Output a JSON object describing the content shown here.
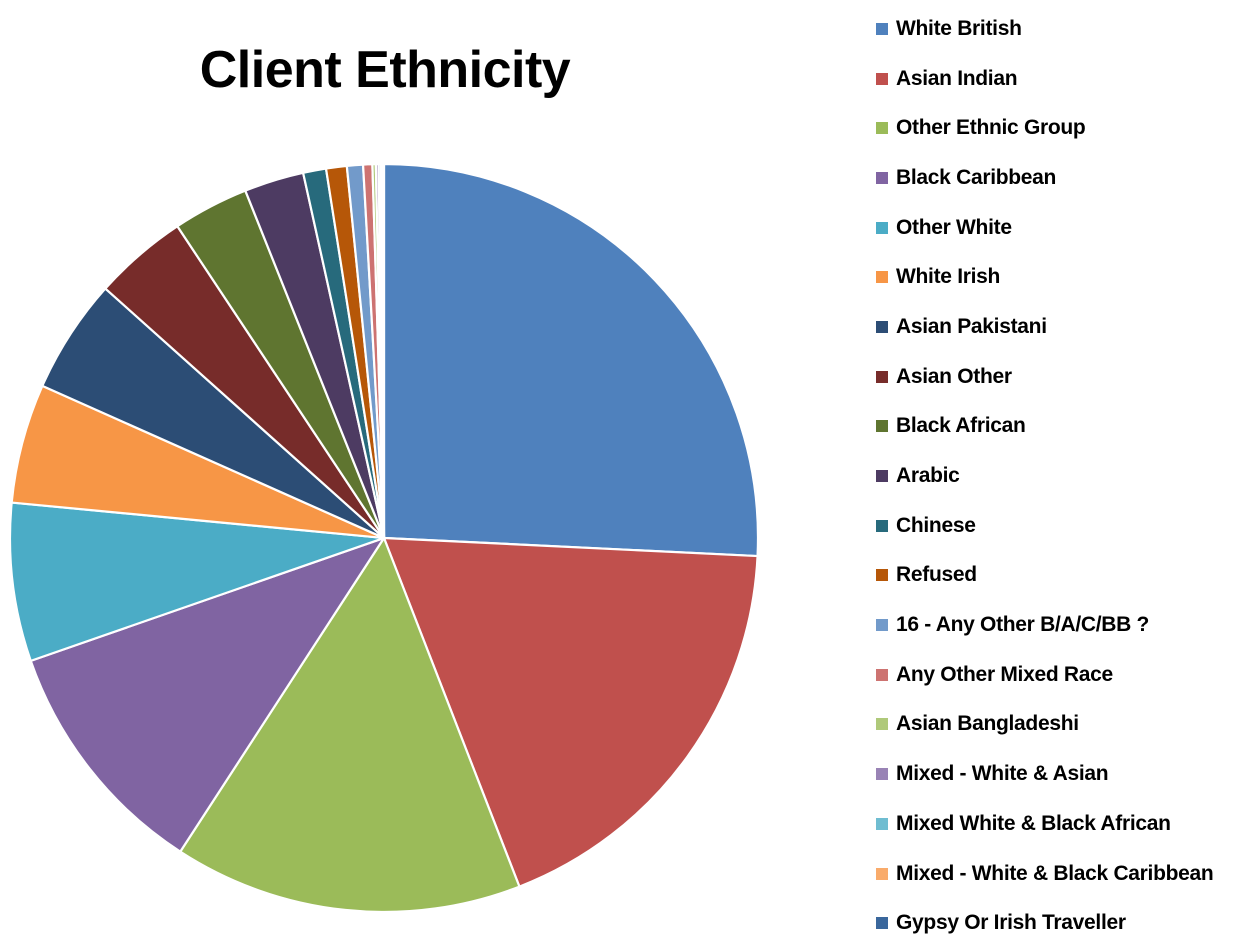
{
  "chart_data": {
    "type": "pie",
    "title": "Client Ethnicity",
    "legend_position": "right",
    "start_angle_deg": 0,
    "direction": "clockwise",
    "slices": [
      {
        "label": "White British",
        "value": 26.0,
        "color": "#4F81BD"
      },
      {
        "label": "Asian Indian",
        "value": 18.5,
        "color": "#C0504D"
      },
      {
        "label": "Other Ethnic Group",
        "value": 15.2,
        "color": "#9BBB59"
      },
      {
        "label": "Black Caribbean",
        "value": 10.6,
        "color": "#8064A2"
      },
      {
        "label": "Other White",
        "value": 6.9,
        "color": "#4BACC6"
      },
      {
        "label": "White Irish",
        "value": 5.2,
        "color": "#F79646"
      },
      {
        "label": "Asian Pakistani",
        "value": 5.0,
        "color": "#2C4D75"
      },
      {
        "label": "Asian Other",
        "value": 4.1,
        "color": "#772C2A"
      },
      {
        "label": "Black African",
        "value": 3.3,
        "color": "#5F7530"
      },
      {
        "label": "Arabic",
        "value": 2.6,
        "color": "#4D3B62"
      },
      {
        "label": "Chinese",
        "value": 1.0,
        "color": "#276A7C"
      },
      {
        "label": "Refused",
        "value": 0.9,
        "color": "#B65708"
      },
      {
        "label": "16 - Any Other B/A/C/BB ?",
        "value": 0.7,
        "color": "#729ACA"
      },
      {
        "label": "Any Other Mixed Race",
        "value": 0.4,
        "color": "#CD7371"
      },
      {
        "label": "Asian Bangladeshi",
        "value": 0.15,
        "color": "#AFC97A"
      },
      {
        "label": "Mixed -  White & Asian",
        "value": 0.12,
        "color": "#9983B5"
      },
      {
        "label": "Mixed White & Black African",
        "value": 0.1,
        "color": "#6FBDD1"
      },
      {
        "label": "Mixed  - White & Black Caribbean",
        "value": 0.08,
        "color": "#F9AB6B"
      },
      {
        "label": "Gypsy Or Irish Traveller",
        "value": 0.05,
        "color": "#3A679C"
      }
    ]
  }
}
